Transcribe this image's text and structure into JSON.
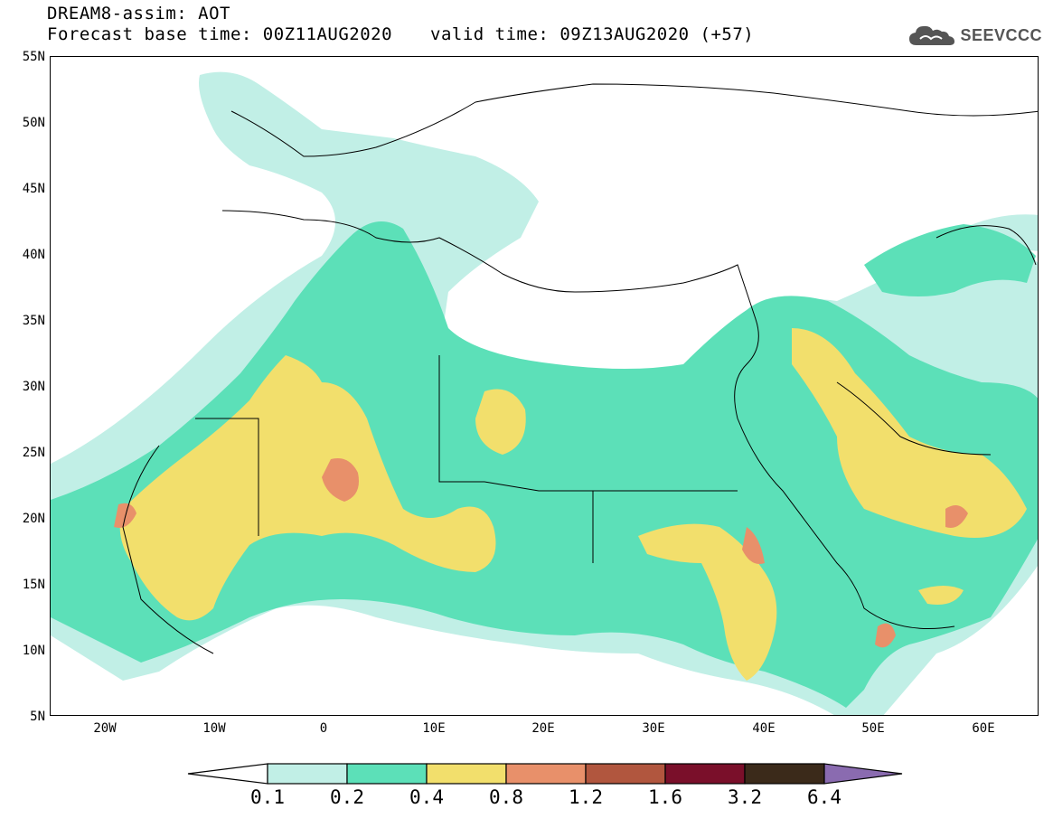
{
  "header": {
    "model_title": "DREAM8-assim: AOT",
    "base_time": "Forecast base time: 00Z11AUG2020",
    "valid_time": "valid time: 09Z13AUG2020 (+57)"
  },
  "logo": {
    "icon": "cloud-logo-icon",
    "text": "SEEVCCC"
  },
  "map": {
    "lat_labels": [
      "55N",
      "50N",
      "45N",
      "40N",
      "35N",
      "30N",
      "25N",
      "20N",
      "15N",
      "10N",
      "5N"
    ],
    "lon_labels": [
      "20W",
      "10W",
      "0",
      "10E",
      "20E",
      "30E",
      "40E",
      "50E",
      "60E"
    ],
    "lon_range": [
      -25,
      65
    ],
    "lat_range": [
      5,
      55
    ]
  },
  "colorbar": {
    "labels": [
      "0.1",
      "0.2",
      "0.4",
      "0.8",
      "1.2",
      "1.6",
      "3.2",
      "6.4"
    ],
    "colors": [
      "#c1efe6",
      "#5ce0b8",
      "#f2df6c",
      "#e8906a",
      "#b1563e",
      "#7a0f2a",
      "#3b2a1a",
      "#8a6bb0"
    ]
  }
}
